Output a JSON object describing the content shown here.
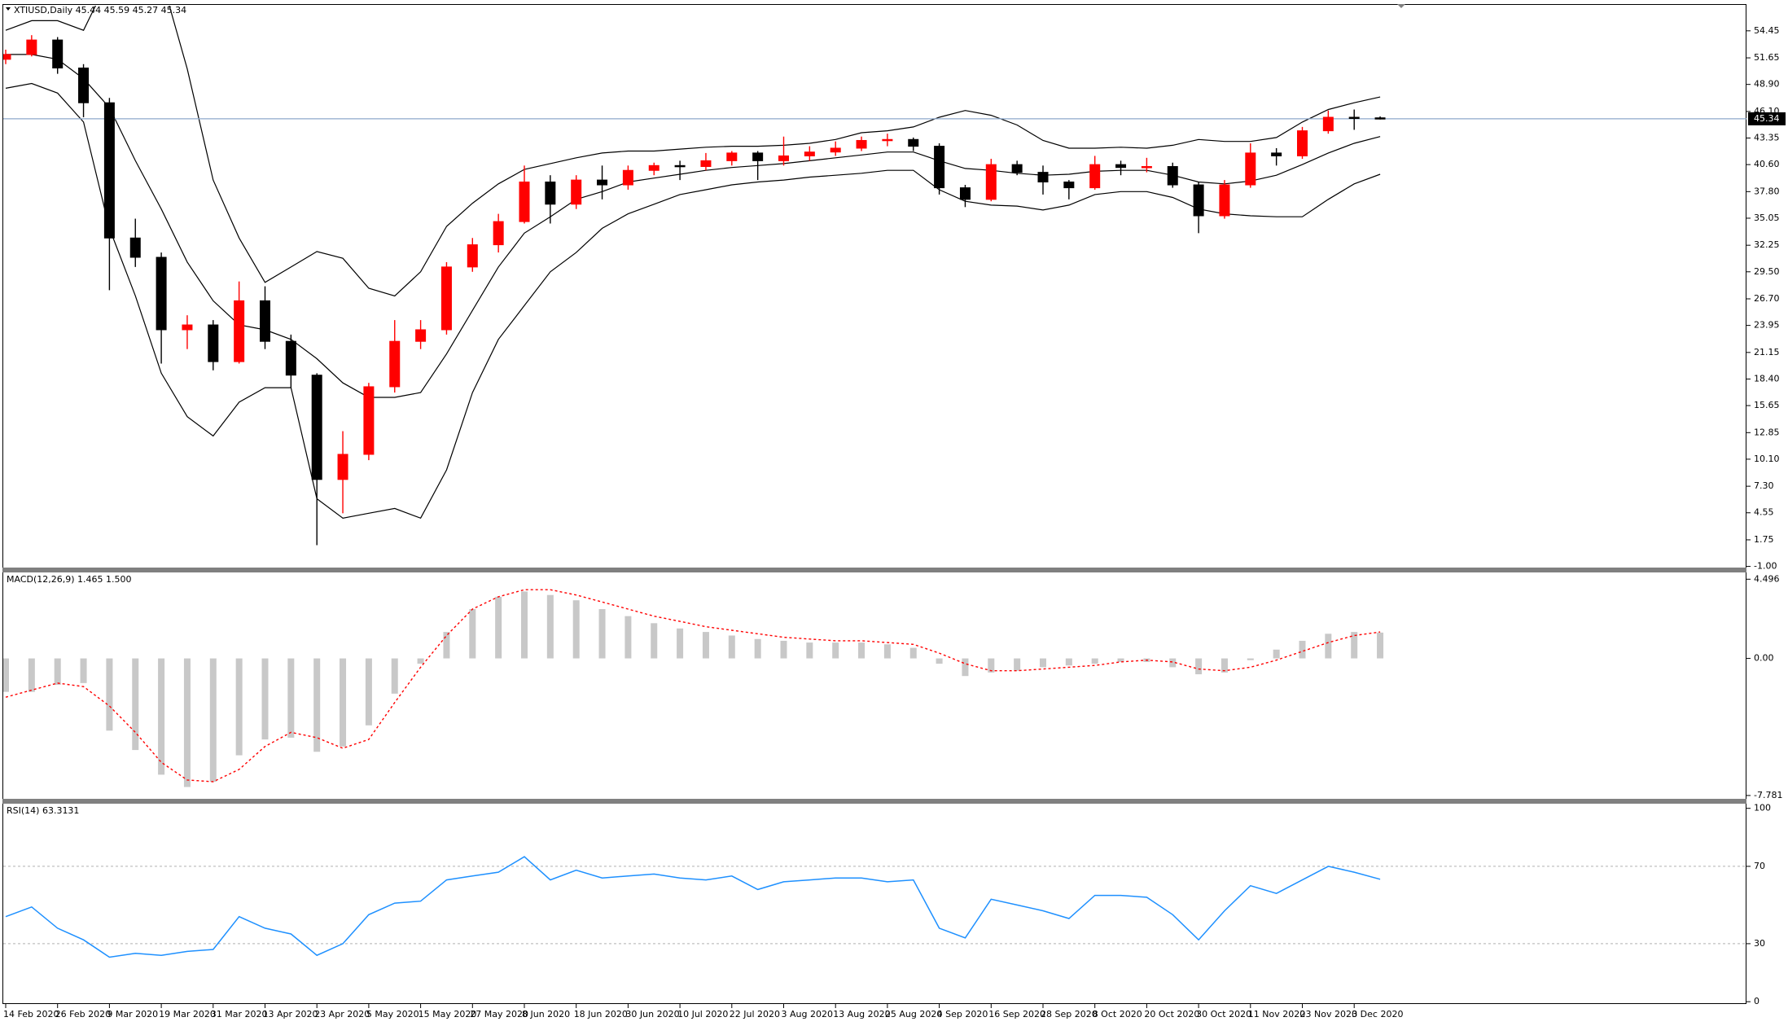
{
  "chart_data": [
    {
      "type": "candlestick",
      "title": "XTIUSD,Daily  45.44 45.59 45.27 45.34",
      "open": [
        51.5,
        52,
        53.5,
        50.6,
        47,
        33,
        31,
        23.5,
        24,
        20.2,
        26.5,
        22.3,
        18.8,
        8,
        10.6,
        17.6,
        22.3,
        23.5,
        30,
        32.3,
        34.7,
        38.8,
        36.5,
        39,
        38.5,
        40,
        40.5,
        40.4,
        41,
        41.8,
        41,
        41.5,
        41.9,
        42.3,
        43.1,
        43.2,
        42.5,
        38.2,
        37,
        40.6,
        39.8,
        38.8,
        38.2,
        40.6,
        40.3,
        40.4,
        38.5,
        35.3,
        38.5,
        41.8,
        41.5,
        44.1,
        45.5,
        45.44
      ],
      "high": [
        52.5,
        54,
        53.8,
        51,
        47.5,
        35,
        31.5,
        25,
        24.5,
        28.5,
        28,
        23,
        19,
        13,
        18,
        24.5,
        24.5,
        30.5,
        33,
        35.5,
        40.5,
        39.5,
        39.5,
        40.5,
        40.5,
        40.8,
        41,
        41.8,
        42,
        42,
        43.5,
        42.5,
        43,
        43.5,
        43.8,
        43.4,
        42.8,
        38.5,
        41.2,
        41,
        40.5,
        39,
        41.5,
        41,
        41.3,
        40.8,
        38.8,
        39,
        42.8,
        42.3,
        44.5,
        46.2,
        46.3,
        45.59
      ],
      "low": [
        51,
        51.8,
        50,
        45.5,
        27.6,
        30,
        20,
        21.5,
        19.3,
        20,
        21.5,
        17.5,
        1.2,
        4.5,
        10,
        17,
        21.5,
        23,
        29.5,
        31.5,
        34.5,
        34.5,
        36,
        37,
        38,
        39.5,
        39,
        40,
        40.5,
        39,
        40.5,
        41,
        41.5,
        42,
        42.5,
        42,
        37.5,
        36.2,
        36.8,
        39.5,
        37.5,
        37,
        38,
        39.5,
        39.8,
        38.2,
        33.5,
        35,
        38.2,
        40.5,
        41.2,
        43.8,
        44.2,
        45.27
      ],
      "close": [
        52,
        53.5,
        50.6,
        47,
        33,
        31,
        23.5,
        24,
        20.2,
        26.5,
        22.3,
        18.8,
        8,
        10.6,
        17.6,
        22.3,
        23.5,
        30,
        32.3,
        34.7,
        38.8,
        36.5,
        39,
        38.5,
        40,
        40.5,
        40.4,
        41,
        41.8,
        41,
        41.5,
        41.9,
        42.3,
        43.1,
        43.2,
        42.5,
        38.2,
        37,
        40.6,
        39.8,
        38.8,
        38.2,
        40.6,
        40.3,
        40.4,
        38.5,
        35.3,
        38.5,
        41.8,
        41.5,
        44.1,
        45.5,
        45.4,
        45.34
      ],
      "bands": {
        "upper": [
          54.5,
          55.5,
          55.5,
          54.5,
          60,
          65,
          60,
          50.5,
          39,
          33,
          28.4,
          30,
          31.6,
          30.9,
          27.8,
          27,
          29.5,
          34.2,
          36.6,
          38.6,
          40.1,
          40.7,
          41.3,
          41.8,
          42,
          42,
          42.2,
          42.4,
          42.5,
          42.5,
          42.6,
          42.8,
          43.2,
          43.9,
          44.1,
          44.5,
          45.5,
          46.2,
          45.7,
          44.7,
          43.1,
          42.3,
          42.3,
          42.4,
          42.3,
          42.6,
          43.2,
          43,
          43,
          43.4,
          45,
          46.3,
          47,
          47.6
        ],
        "middle": [
          52,
          52,
          51.5,
          49.5,
          46.5,
          41,
          36,
          30.5,
          26.5,
          24,
          23.5,
          22.5,
          20.5,
          18,
          16.5,
          16.5,
          17,
          21,
          25.5,
          30,
          33.5,
          35.2,
          37,
          37.8,
          38.8,
          39.2,
          39.6,
          40,
          40.3,
          40.5,
          40.7,
          41,
          41.3,
          41.6,
          41.9,
          41.9,
          41,
          40.2,
          40,
          39.7,
          39.5,
          39.6,
          39.9,
          40,
          40,
          39.5,
          38.8,
          38.6,
          38.9,
          39.5,
          40.6,
          41.8,
          42.8,
          43.5
        ],
        "lower": [
          48.5,
          49,
          48,
          45,
          34,
          27,
          19,
          14.5,
          12.5,
          16,
          17.5,
          17.5,
          6,
          4,
          4.5,
          5,
          4,
          9,
          17,
          22.5,
          26,
          29.5,
          31.5,
          34,
          35.5,
          36.5,
          37.5,
          38,
          38.5,
          38.8,
          39,
          39.3,
          39.5,
          39.7,
          40,
          40,
          38,
          36.8,
          36.4,
          36.3,
          35.9,
          36.4,
          37.5,
          37.8,
          37.8,
          37.2,
          36,
          35.5,
          35.3,
          35.2,
          35.2,
          37,
          38.6,
          39.6
        ]
      },
      "up_color": "#ff0000",
      "down_color": "#000000",
      "band_color": "#000000",
      "last_price": 45.34,
      "last_price_color": "#8ea9cc",
      "ylim": [
        -1.12,
        57.05
      ],
      "yticks": [
        54.45,
        51.65,
        {
          "value": 48.9,
          "label": "48.90"
        },
        {
          "value": 46.1,
          "label": "46.10"
        },
        43.35,
        {
          "value": 40.6,
          "label": "40.60"
        },
        {
          "value": 37.8,
          "label": "37.80"
        },
        35.05,
        32.25,
        {
          "value": 29.5,
          "label": "29.50"
        },
        {
          "value": 26.7,
          "label": "26.70"
        },
        23.95,
        21.15,
        {
          "value": 18.4,
          "label": "18.40"
        },
        15.65,
        12.85,
        {
          "value": 10.1,
          "label": "10.10"
        },
        {
          "value": 7.3,
          "label": "7.30"
        },
        4.55,
        1.75,
        {
          "value": -1,
          "label": "-1.00"
        }
      ]
    },
    {
      "type": "macd",
      "title": "MACD(12,26,9) 1.465 1.500",
      "histogram": [
        -1.9,
        -1.9,
        -1.5,
        -1.4,
        -4.1,
        -5.2,
        -6.6,
        -7.3,
        -7,
        -5.5,
        -4.6,
        -4.5,
        -5.3,
        -5,
        -3.8,
        -2,
        -0.3,
        1.5,
        2.8,
        3.5,
        3.8,
        3.6,
        3.3,
        2.8,
        2.4,
        2,
        1.7,
        1.5,
        1.3,
        1.1,
        1,
        0.9,
        0.9,
        0.9,
        0.8,
        0.6,
        -0.3,
        -1,
        -0.8,
        -0.7,
        -0.5,
        -0.4,
        -0.3,
        -0.2,
        -0.2,
        -0.5,
        -0.9,
        -0.8,
        -0.1,
        0.5,
        1,
        1.4,
        1.5,
        1.465
      ],
      "signal": [
        -2.2,
        -1.8,
        -1.4,
        -1.6,
        -2.7,
        -4.2,
        -5.9,
        -6.9,
        -7,
        -6.3,
        -5,
        -4.2,
        -4.5,
        -5.1,
        -4.6,
        -2.5,
        -0.5,
        1.3,
        2.8,
        3.5,
        3.9,
        3.9,
        3.6,
        3.2,
        2.8,
        2.4,
        2.1,
        1.8,
        1.6,
        1.4,
        1.2,
        1.1,
        1,
        1,
        0.9,
        0.8,
        0.3,
        -0.3,
        -0.7,
        -0.7,
        -0.6,
        -0.5,
        -0.4,
        -0.2,
        -0.1,
        -0.2,
        -0.6,
        -0.7,
        -0.5,
        -0.1,
        0.4,
        0.9,
        1.3,
        1.5
      ],
      "histogram_color": "#c8c8c8",
      "signal_color": "#ff0000",
      "ylim": [
        -7.97,
        4.88
      ],
      "yticks": [
        4.496,
        {
          "value": 0,
          "label": "0.00"
        },
        -7.781
      ]
    },
    {
      "type": "line",
      "title": "RSI(14) 63.3131",
      "categories": [
        "14 Feb 2020",
        null,
        "26 Feb 2020",
        null,
        "9 Mar 2020",
        null,
        "19 Mar 2020",
        null,
        "31 Mar 2020",
        null,
        "13 Apr 2020",
        null,
        "23 Apr 2020",
        null,
        "5 May 2020",
        null,
        "15 May 2020",
        null,
        "27 May 2020",
        null,
        "8 Jun 2020",
        null,
        "18 Jun 2020",
        null,
        "30 Jun 2020",
        null,
        "10 Jul 2020",
        null,
        "22 Jul 2020",
        null,
        "3 Aug 2020",
        null,
        "13 Aug 2020",
        null,
        "25 Aug 2020",
        null,
        "4 Sep 2020",
        null,
        "16 Sep 2020",
        null,
        "28 Sep 2020",
        null,
        "8 Oct 2020",
        null,
        "20 Oct 2020",
        null,
        "30 Oct 2020",
        null,
        "11 Nov 2020",
        null,
        "23 Nov 2020",
        null,
        "3 Dec 2020",
        null
      ],
      "values": [
        44,
        49,
        38,
        32,
        23,
        25,
        24,
        26,
        27,
        44,
        38,
        35,
        24,
        30,
        45,
        51,
        52,
        63,
        65,
        67,
        75,
        63,
        68,
        64,
        65,
        66,
        64,
        63,
        65,
        58,
        62,
        63,
        64,
        64,
        62,
        63,
        38,
        33,
        53,
        50,
        47,
        43,
        55,
        55,
        54,
        45,
        32,
        47,
        60,
        56,
        63,
        70,
        67,
        63.3131
      ],
      "color": "#1e90ff",
      "levels": [
        70,
        30
      ],
      "ylim": [
        -1.2,
        102.4
      ],
      "yticks": [
        100,
        70,
        30,
        0
      ]
    }
  ]
}
